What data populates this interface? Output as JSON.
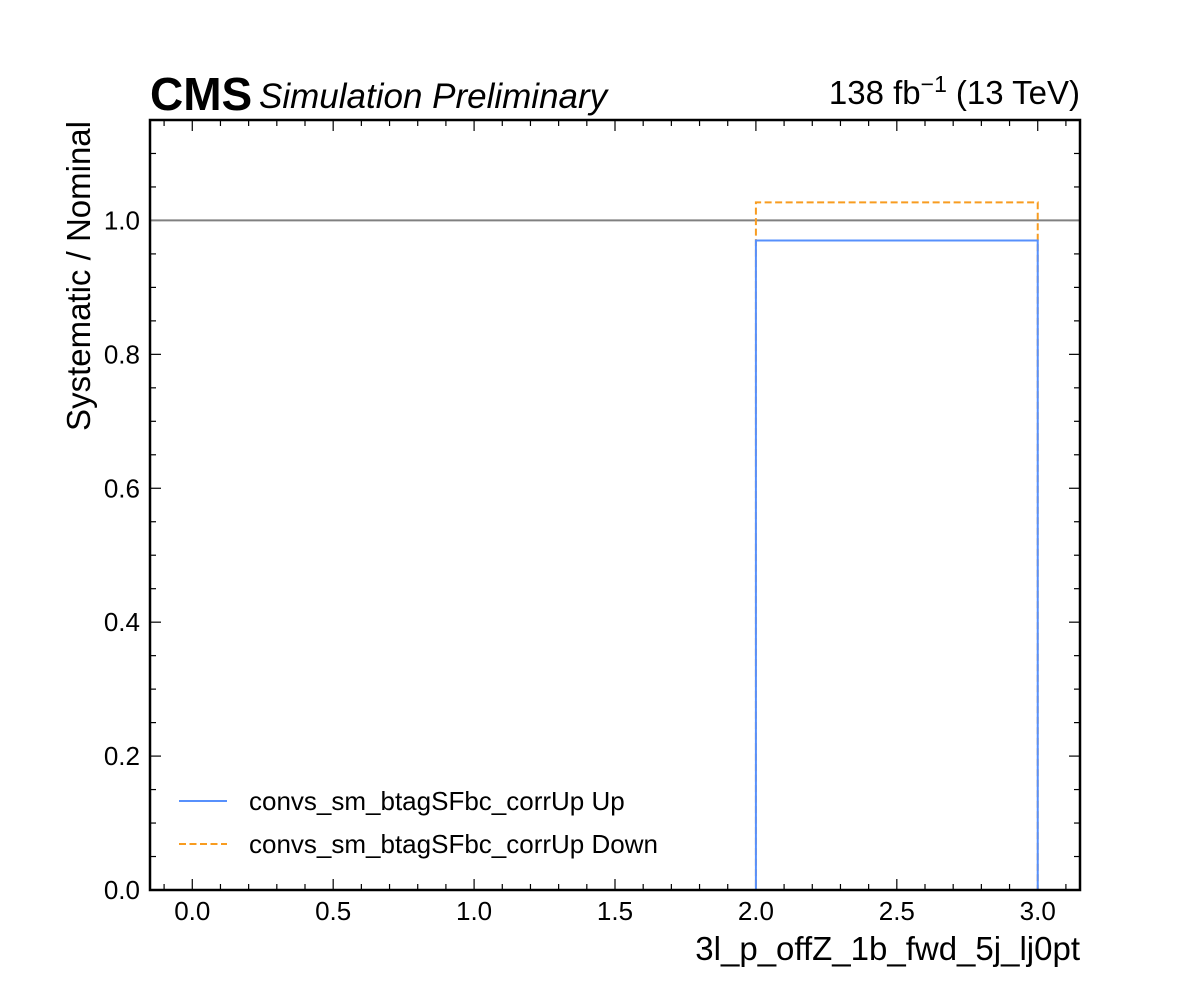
{
  "header": {
    "cms": "CMS",
    "status": "Simulation Preliminary",
    "lumi_value": "138 fb",
    "lumi_exponent": "−1",
    "energy": "(13 TeV)"
  },
  "chart_data": {
    "type": "line",
    "xlabel": "3l_p_offZ_1b_fwd_5j_lj0pt",
    "ylabel": "Systematic / Nominal",
    "xlim": [
      -0.15,
      3.15
    ],
    "ylim": [
      0.0,
      1.15
    ],
    "xticks": [
      0.0,
      0.5,
      1.0,
      1.5,
      2.0,
      2.5,
      3.0
    ],
    "xtick_labels": [
      "0.0",
      "0.5",
      "1.0",
      "1.5",
      "2.0",
      "2.5",
      "3.0"
    ],
    "yticks": [
      0.0,
      0.2,
      0.4,
      0.6,
      0.8,
      1.0
    ],
    "ytick_labels": [
      "0.0",
      "0.2",
      "0.4",
      "0.6",
      "0.8",
      "1.0"
    ],
    "reference_line": {
      "y": 1.0,
      "color": "#808080"
    },
    "bin_edges": [
      0,
      1,
      2,
      3
    ],
    "series": [
      {
        "name": "convs_sm_btagSFbc_corrUp Up",
        "style": "solid",
        "color": "#5790fc",
        "values": [
          0.0,
          0.0,
          0.97
        ]
      },
      {
        "name": "convs_sm_btagSFbc_corrUp Down",
        "style": "dashed",
        "color": "#f89c20",
        "values": [
          0.0,
          0.0,
          1.027
        ]
      }
    ],
    "legend_position": "lower-left",
    "grid": false
  }
}
